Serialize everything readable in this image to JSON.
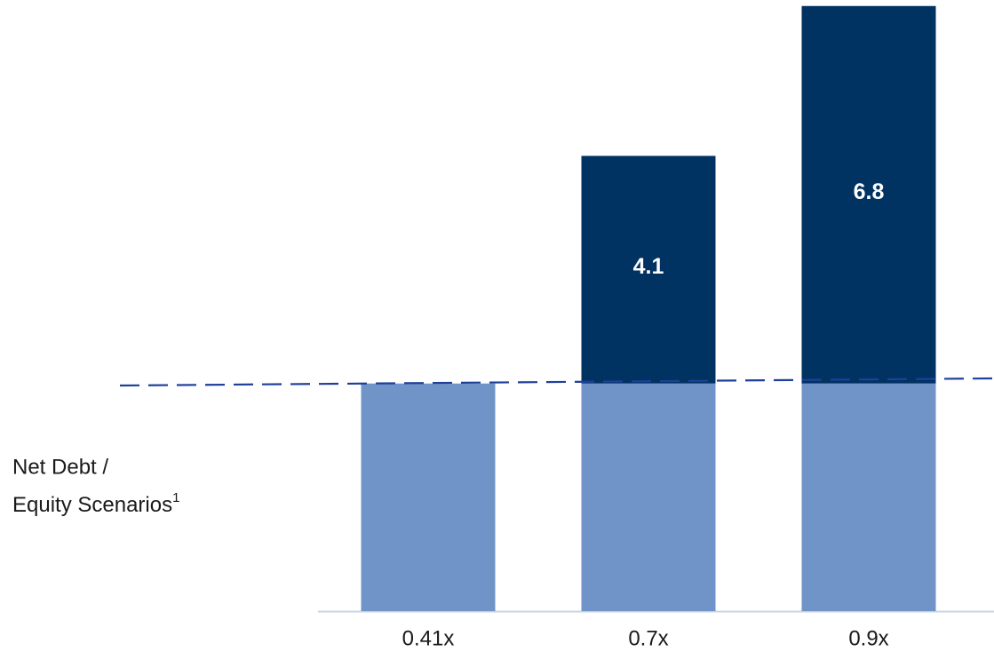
{
  "chart_data": {
    "type": "stacked_bar",
    "categories": [
      "0.41x",
      "0.7x",
      "0.9x"
    ],
    "series": [
      {
        "color": "#7094c8",
        "values": [
          4.1,
          4.1,
          4.1
        ]
      },
      {
        "color": "#003262",
        "values": [
          null,
          4.1,
          6.8
        ],
        "label_color": "#ffffff"
      }
    ],
    "ylim": [
      0,
      11
    ],
    "annotation": [
      "Net Debt /",
      "Equity Scenarios"
    ],
    "annotation_superscript": "1"
  }
}
